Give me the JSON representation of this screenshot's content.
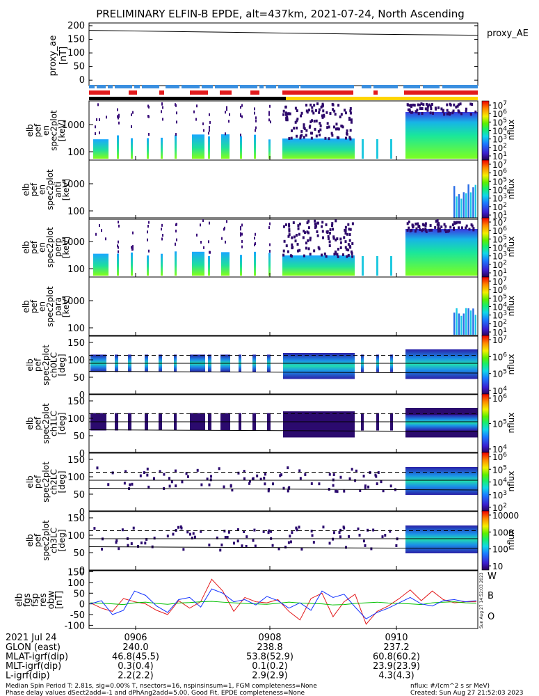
{
  "title": "PRELIMINARY ELFIN-B EPDE, alt=437km, 2021-07-24, North Ascending",
  "proxy_ae": {
    "label": "proxy_ae\n[nT]",
    "legend": "proxy_AE",
    "yticks": [
      "200",
      "150",
      "100",
      "50",
      "0"
    ],
    "ylim": [
      -20,
      210
    ],
    "series_x": [
      0,
      0.15,
      0.35,
      0.55,
      0.7,
      0.85,
      1.0
    ],
    "series_y": [
      183,
      180,
      176,
      172,
      169,
      167,
      165
    ]
  },
  "status_bars": {
    "colors": {
      "blue": "#3a8fe0",
      "red": "#e31a1c",
      "black": "#000000",
      "yellow": "#ffd400"
    }
  },
  "spectrogram_panels": [
    {
      "label": "elb\npef\nen\nspec2plot\n[keV]",
      "yticks": [
        "1000",
        "100"
      ],
      "cb_ticks": [
        "10^7",
        "10^6",
        "10^5",
        "10^4",
        "10^3",
        "10^2",
        "10^1"
      ],
      "cb_label": "nflux"
    },
    {
      "label": "elb\npef\nen\nspec2plot\nanti\n[keV]",
      "yticks": [
        "1000",
        "100"
      ],
      "cb_ticks": [
        "10^7",
        "10^6",
        "10^5",
        "10^4",
        "10^3",
        "10^2",
        "10^1"
      ],
      "cb_label": "nflux"
    },
    {
      "label": "elb\npef\nen\nspec2plot\nperp\n[keV]",
      "yticks": [
        "1000",
        "100"
      ],
      "cb_ticks": [
        "10^7",
        "10^6",
        "10^5",
        "10^4",
        "10^3",
        "10^2",
        "10^1"
      ],
      "cb_label": "nflux"
    },
    {
      "label": "elb\npef\nen\nspec2plot\npara\n[keV]",
      "yticks": [
        "1000",
        "100"
      ],
      "cb_ticks": [
        "10^7",
        "10^6",
        "10^5",
        "10^4",
        "10^3",
        "10^2",
        "10^1"
      ],
      "cb_label": "nflux"
    }
  ],
  "pitch_panels": [
    {
      "label": "elb\npef\nspec2plot\nch0LC\n[deg]",
      "yticks": [
        "150",
        "100",
        "50",
        "0"
      ],
      "cb_ticks": [
        "10^7",
        "10^6",
        "10^5",
        "10^4"
      ],
      "cb_label": "nflux"
    },
    {
      "label": "elb\npef\nspec2plot\nch1LC\n[deg]",
      "yticks": [
        "150",
        "100",
        "50",
        "0"
      ],
      "cb_ticks": [
        "10^6",
        "10^5",
        "10^4"
      ],
      "cb_label": "nflux"
    },
    {
      "label": "elb\npef\nspec2plot\nch2LC\n[deg]",
      "yticks": [
        "150",
        "100",
        "50",
        "0"
      ],
      "cb_ticks": [
        "10^6",
        "10^5",
        "10^4",
        "10^3",
        "10^2"
      ],
      "cb_label": "nflux"
    },
    {
      "label": "elb\npef\nspec2plot\nch3LC\n[deg]",
      "yticks": [
        "150",
        "100",
        "50",
        "0"
      ],
      "cb_ticks": [
        "10000",
        "1000",
        "100",
        "10"
      ],
      "cb_label": "nflux"
    }
  ],
  "chart_data": {
    "type": "line",
    "title": "",
    "ylabel": "elb\nfgs\nfsp\nres\nobw\n[nT]",
    "yticks": [
      "150",
      "100",
      "50",
      "0",
      "-50",
      "-100"
    ],
    "ylim": [
      -115,
      155
    ],
    "x_ticks": [
      "0906",
      "0908",
      "0910"
    ],
    "series": [
      {
        "name": "W",
        "color": "#e31a1c",
        "values": [
          5,
          -20,
          -35,
          25,
          10,
          0,
          -30,
          -50,
          15,
          -20,
          10,
          115,
          60,
          -35,
          30,
          10,
          5,
          20,
          -35,
          -75,
          25,
          50,
          -60,
          10,
          45,
          -95,
          -35,
          -10,
          25,
          65,
          15,
          60,
          20,
          5,
          10,
          10
        ]
      },
      {
        "name": "B",
        "color": "#00c000",
        "values": [
          5,
          3,
          0,
          -3,
          5,
          8,
          2,
          -2,
          4,
          6,
          10,
          12,
          8,
          5,
          2,
          0,
          -2,
          3,
          8,
          4,
          2,
          0,
          -5,
          -3,
          2,
          5,
          8,
          4,
          2,
          0,
          -3,
          5,
          8,
          10,
          5,
          3
        ]
      },
      {
        "name": "O",
        "color": "#1030ff",
        "values": [
          0,
          15,
          -50,
          -30,
          60,
          40,
          -10,
          -40,
          20,
          30,
          -15,
          70,
          50,
          10,
          20,
          -5,
          35,
          15,
          -20,
          5,
          -30,
          60,
          30,
          45,
          -15,
          -70,
          -40,
          -20,
          5,
          30,
          0,
          -10,
          15,
          20,
          10,
          15
        ]
      }
    ]
  },
  "ephemeris": {
    "date": "2021 Jul 24",
    "rows": [
      {
        "label": "GLON (east)",
        "values": [
          "240.0",
          "238.8",
          "237.2"
        ]
      },
      {
        "label": "MLAT-igrf(dip)",
        "values": [
          "46.8(45.5)",
          "53.8(52.9)",
          "60.8(60.2)"
        ]
      },
      {
        "label": "MLT-igrf(dip)",
        "values": [
          "0.3(0.4)",
          "0.1(0.2)",
          "23.9(23.9)"
        ]
      },
      {
        "label": "L-igrf(dip)",
        "values": [
          "2.2(2.2)",
          "2.9(2.9)",
          "4.3(4.3)"
        ]
      }
    ]
  },
  "footer": {
    "line1": "Median Spin Period T: 2.81s, sig=0.00% T, nsectors=16, nspinsinsum=1, FGM completeness=None",
    "line2": "Phase delay values dSect2add=-1 and dPhAng2add=5.00, Good Fit, EPDE completeness=None",
    "units": "nflux: #/(cm^2 s sr MeV)",
    "created": "Created: Sun Aug 27 21:52:03 2023",
    "side_stamp": "Sun Aug 27 14:52:03 2023"
  }
}
